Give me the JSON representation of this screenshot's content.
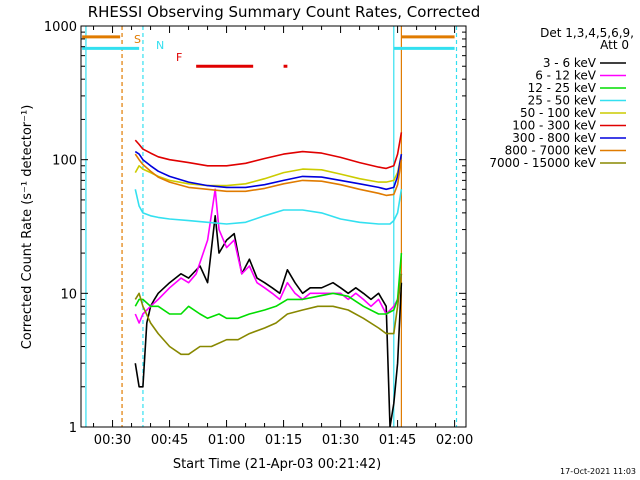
{
  "chart_data": {
    "type": "line",
    "title": "RHESSI Observing Summary Count Rates, Corrected",
    "xlabel": "Start Time (21-Apr-03 00:21:42)",
    "ylabel": "Corrected Count Rate (s⁻¹ detector⁻¹)",
    "y_scale": "log",
    "ylim": [
      1,
      1000
    ],
    "xlim": [
      "00:21:42",
      "02:03:00"
    ],
    "y_ticks": [
      "1",
      "10",
      "100",
      "1000"
    ],
    "x_ticks": [
      "00:30",
      "00:45",
      "01:00",
      "01:15",
      "01:30",
      "01:45",
      "02:00"
    ],
    "x_tick_minutes": [
      30,
      45,
      60,
      75,
      90,
      105,
      120
    ],
    "legend_title": "Det 1,3,4,5,6,9,",
    "legend_subtitle": "Att 0",
    "legend_position": "top-right",
    "footer_date": "17-Oct-2021 11:03",
    "flags": {
      "s_label": "S",
      "n_label": "N",
      "f_label": "F",
      "s_color": "#e07b00",
      "n_color": "#33e0f0",
      "f_color": "#e00000",
      "s_bar_level": 830,
      "n_bar_level": 680,
      "f_bar_level": 500,
      "s_bar_segments": [
        [
          22,
          32
        ],
        [
          106,
          120
        ]
      ],
      "n_bar_segments": [
        [
          22,
          37
        ],
        [
          104,
          120
        ]
      ],
      "f_bar_segments": [
        [
          52,
          67
        ],
        [
          75,
          76
        ]
      ],
      "s_lines_minutes": [
        32.5,
        106
      ],
      "n_lines_minutes": [
        23,
        38,
        104,
        120.5
      ]
    },
    "series": [
      {
        "name": "3 - 6 keV",
        "color": "#000000",
        "x": [
          36,
          37,
          38,
          39,
          40,
          41,
          42,
          45,
          48,
          50,
          53,
          55,
          57,
          58,
          60,
          62,
          64,
          66,
          68,
          70,
          72,
          74,
          76,
          78,
          80,
          82,
          85,
          88,
          90,
          92,
          94,
          96,
          98,
          100,
          102,
          103,
          104,
          105,
          106
        ],
        "y": [
          3,
          2,
          2,
          6,
          8,
          9,
          10,
          12,
          14,
          13,
          16,
          12,
          38,
          20,
          25,
          28,
          14,
          18,
          13,
          12,
          11,
          10,
          15,
          12,
          10,
          11,
          11,
          12,
          11,
          10,
          11,
          10,
          9,
          10,
          8,
          1,
          1.5,
          3,
          12
        ]
      },
      {
        "name": "6 - 12 keV",
        "color": "#ff00ff",
        "x": [
          36,
          37,
          38,
          40,
          42,
          45,
          48,
          50,
          52,
          55,
          57,
          58,
          60,
          62,
          64,
          66,
          68,
          70,
          72,
          74,
          76,
          78,
          80,
          82,
          85,
          88,
          90,
          92,
          94,
          96,
          98,
          100,
          102,
          104,
          105,
          106
        ],
        "y": [
          7,
          6,
          7,
          8,
          9,
          11,
          13,
          12,
          14,
          25,
          60,
          30,
          22,
          25,
          14,
          16,
          12,
          11,
          10,
          9,
          12,
          10,
          9,
          10,
          10,
          10,
          10,
          9,
          10,
          9,
          8,
          9,
          7,
          8,
          9,
          14
        ]
      },
      {
        "name": "12 - 25 keV",
        "color": "#00dd00",
        "x": [
          36,
          37,
          38,
          40,
          42,
          45,
          48,
          50,
          53,
          55,
          58,
          60,
          63,
          66,
          70,
          73,
          76,
          80,
          84,
          88,
          92,
          96,
          100,
          102,
          104,
          105,
          106
        ],
        "y": [
          8,
          9,
          9,
          8,
          8,
          7,
          7,
          8,
          7,
          6.5,
          7,
          6.5,
          6.5,
          7,
          7.5,
          8,
          9,
          9,
          9.5,
          10,
          9.5,
          8,
          7,
          7,
          7.5,
          9,
          20
        ]
      },
      {
        "name": "25 - 50 keV",
        "color": "#33e0f0",
        "x": [
          36,
          37,
          38,
          40,
          42,
          45,
          50,
          55,
          60,
          65,
          70,
          75,
          80,
          85,
          90,
          95,
          100,
          102,
          103,
          104,
          105,
          106
        ],
        "y": [
          60,
          45,
          40,
          38,
          37,
          36,
          35,
          34,
          33,
          34,
          38,
          42,
          42,
          40,
          36,
          34,
          33,
          33,
          33,
          35,
          40,
          60
        ]
      },
      {
        "name": "50 - 100 keV",
        "color": "#cccc00",
        "x": [
          36,
          37,
          38,
          40,
          42,
          45,
          50,
          55,
          60,
          65,
          70,
          75,
          80,
          85,
          90,
          95,
          100,
          102,
          104,
          105,
          106
        ],
        "y": [
          80,
          90,
          85,
          80,
          75,
          70,
          66,
          64,
          64,
          66,
          72,
          80,
          85,
          84,
          78,
          72,
          68,
          68,
          70,
          80,
          110
        ]
      },
      {
        "name": "100 - 300 keV",
        "color": "#e00000",
        "x": [
          36,
          37,
          38,
          40,
          42,
          45,
          50,
          55,
          60,
          65,
          70,
          75,
          80,
          85,
          90,
          95,
          100,
          102,
          104,
          105,
          106
        ],
        "y": [
          140,
          130,
          120,
          112,
          105,
          100,
          95,
          90,
          90,
          94,
          102,
          110,
          115,
          112,
          104,
          95,
          88,
          86,
          90,
          110,
          160
        ]
      },
      {
        "name": "300 - 800 keV",
        "color": "#0000dd",
        "x": [
          36,
          37,
          38,
          40,
          42,
          45,
          50,
          55,
          60,
          65,
          70,
          75,
          80,
          85,
          90,
          95,
          100,
          102,
          104,
          105,
          106
        ],
        "y": [
          115,
          110,
          100,
          90,
          82,
          75,
          68,
          64,
          62,
          62,
          65,
          70,
          75,
          74,
          70,
          66,
          62,
          60,
          62,
          75,
          110
        ]
      },
      {
        "name": "800 - 7000 keV",
        "color": "#e07b00",
        "x": [
          36,
          37,
          38,
          40,
          42,
          45,
          50,
          55,
          60,
          65,
          70,
          75,
          80,
          85,
          90,
          95,
          100,
          102,
          104,
          105,
          106
        ],
        "y": [
          110,
          100,
          92,
          82,
          74,
          68,
          62,
          60,
          58,
          58,
          61,
          66,
          70,
          69,
          65,
          60,
          56,
          54,
          55,
          65,
          100
        ]
      },
      {
        "name": "7000 - 15000 keV",
        "color": "#888800",
        "x": [
          36,
          37,
          38,
          40,
          42,
          45,
          48,
          50,
          53,
          56,
          60,
          63,
          66,
          70,
          73,
          76,
          80,
          84,
          88,
          92,
          96,
          100,
          102,
          104,
          105,
          106
        ],
        "y": [
          9,
          10,
          8,
          6,
          5,
          4,
          3.5,
          3.5,
          4,
          4,
          4.5,
          4.5,
          5,
          5.5,
          6,
          7,
          7.5,
          8,
          8,
          7.5,
          6.5,
          5.5,
          5,
          5,
          8,
          14
        ]
      }
    ]
  }
}
